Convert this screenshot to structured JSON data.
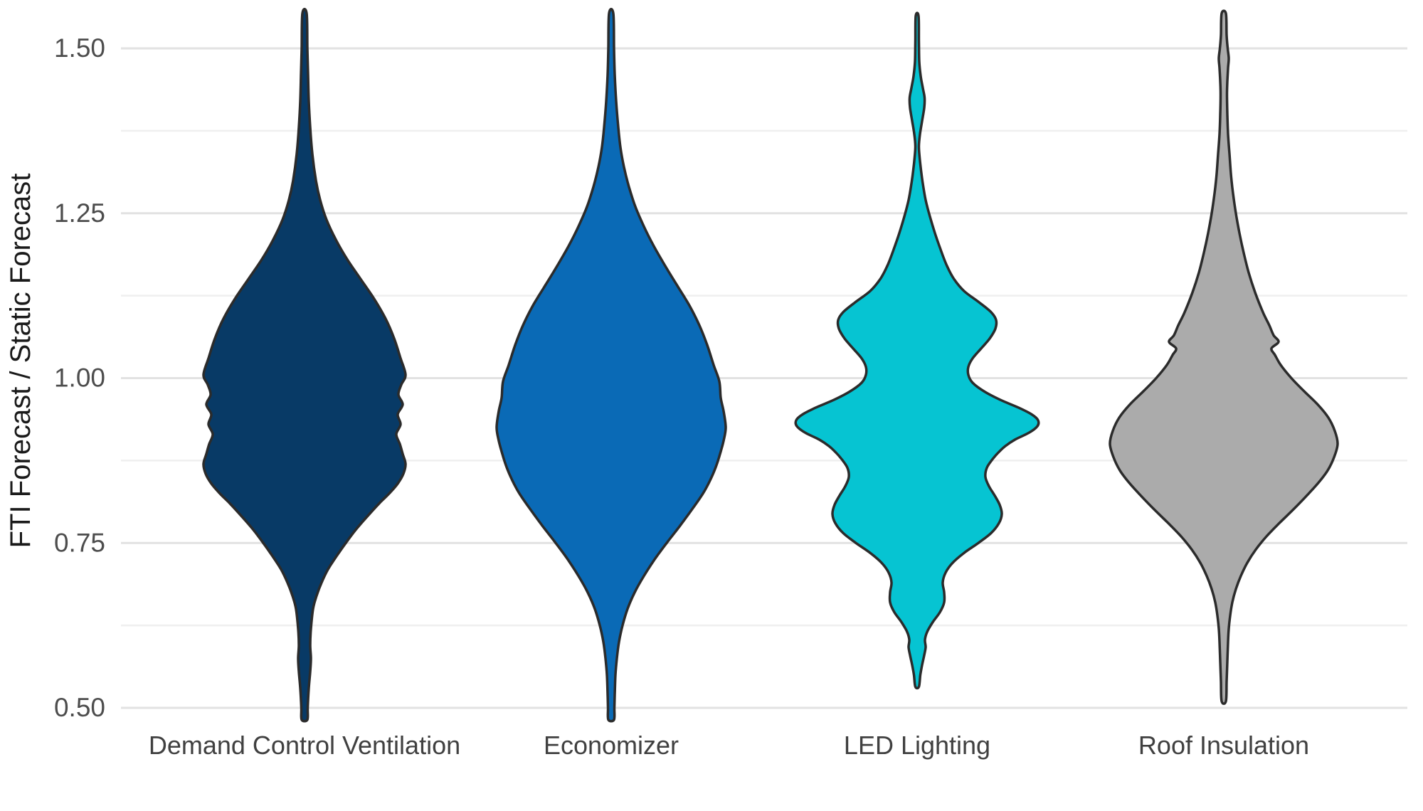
{
  "chart_data": {
    "type": "violin",
    "title": "",
    "xlabel": "",
    "ylabel": "FTI Forecast / Static Forecast",
    "categories": [
      "Demand Control Ventilation",
      "Economizer",
      "LED Lighting",
      "Roof Insulation"
    ],
    "y_ticks": [
      1.5,
      1.25,
      1.0,
      0.75,
      0.5
    ],
    "y_tick_labels": [
      "1.50",
      "1.25",
      "1.00",
      "0.75",
      "0.50"
    ],
    "y_minor_ticks": [
      1.375,
      1.125,
      0.875,
      0.625
    ],
    "ylim": [
      0.482,
      1.573
    ],
    "grid": "horizontal major+minor",
    "legend": "none",
    "colors": {
      "background": "#FFFFFF",
      "outline": "#2B2B2B",
      "grid_major": "#E2E2E2",
      "grid_minor": "#EFEFEF",
      "tick_text": "#4D4D4D",
      "category_text": "#404040",
      "axis_title_text": "#1A1A1A"
    },
    "series": [
      {
        "name": "Demand Control Ventilation",
        "fill": "#083A66",
        "profile_note": "pairs of [y_value, half_width_px at 2000px image scale]",
        "profile": [
          [
            1.553,
            3
          ],
          [
            1.5,
            4
          ],
          [
            1.46,
            5
          ],
          [
            1.42,
            6
          ],
          [
            1.38,
            8
          ],
          [
            1.34,
            11
          ],
          [
            1.3,
            16
          ],
          [
            1.27,
            22
          ],
          [
            1.24,
            31
          ],
          [
            1.21,
            44
          ],
          [
            1.18,
            60
          ],
          [
            1.15,
            79
          ],
          [
            1.12,
            98
          ],
          [
            1.09,
            114
          ],
          [
            1.06,
            126
          ],
          [
            1.03,
            135
          ],
          [
            1.005,
            142
          ],
          [
            0.99,
            136
          ],
          [
            0.975,
            132
          ],
          [
            0.96,
            138
          ],
          [
            0.945,
            131
          ],
          [
            0.93,
            135
          ],
          [
            0.915,
            129
          ],
          [
            0.9,
            134
          ],
          [
            0.885,
            138
          ],
          [
            0.87,
            142
          ],
          [
            0.855,
            139
          ],
          [
            0.84,
            131
          ],
          [
            0.825,
            119
          ],
          [
            0.81,
            105
          ],
          [
            0.79,
            88
          ],
          [
            0.77,
            72
          ],
          [
            0.75,
            58
          ],
          [
            0.73,
            45
          ],
          [
            0.71,
            33
          ],
          [
            0.69,
            24
          ],
          [
            0.67,
            17
          ],
          [
            0.65,
            12
          ],
          [
            0.62,
            9
          ],
          [
            0.595,
            8
          ],
          [
            0.575,
            9
          ],
          [
            0.555,
            8
          ],
          [
            0.53,
            6
          ],
          [
            0.5,
            4.5
          ],
          [
            0.482,
            4
          ]
        ]
      },
      {
        "name": "Economizer",
        "fill": "#0A6AB6",
        "profile": [
          [
            1.553,
            3
          ],
          [
            1.5,
            4
          ],
          [
            1.46,
            5
          ],
          [
            1.42,
            7
          ],
          [
            1.38,
            10
          ],
          [
            1.35,
            13
          ],
          [
            1.32,
            18
          ],
          [
            1.29,
            25
          ],
          [
            1.26,
            34
          ],
          [
            1.23,
            46
          ],
          [
            1.2,
            60
          ],
          [
            1.17,
            76
          ],
          [
            1.14,
            93
          ],
          [
            1.11,
            110
          ],
          [
            1.08,
            124
          ],
          [
            1.05,
            135
          ],
          [
            1.02,
            144
          ],
          [
            0.995,
            152
          ],
          [
            0.97,
            154
          ],
          [
            0.95,
            158
          ],
          [
            0.925,
            161
          ],
          [
            0.905,
            158
          ],
          [
            0.885,
            153
          ],
          [
            0.865,
            147
          ],
          [
            0.845,
            139
          ],
          [
            0.825,
            129
          ],
          [
            0.8,
            113
          ],
          [
            0.775,
            96
          ],
          [
            0.75,
            78
          ],
          [
            0.725,
            61
          ],
          [
            0.7,
            46
          ],
          [
            0.675,
            33
          ],
          [
            0.65,
            23
          ],
          [
            0.625,
            16
          ],
          [
            0.6,
            11
          ],
          [
            0.575,
            8
          ],
          [
            0.55,
            6
          ],
          [
            0.52,
            5
          ],
          [
            0.5,
            4.5
          ],
          [
            0.482,
            4
          ]
        ]
      },
      {
        "name": "LED Lighting",
        "fill": "#06C4D2",
        "profile": [
          [
            1.549,
            2
          ],
          [
            1.51,
            2.5
          ],
          [
            1.48,
            3
          ],
          [
            1.458,
            5
          ],
          [
            1.44,
            8
          ],
          [
            1.425,
            10.5
          ],
          [
            1.41,
            10
          ],
          [
            1.39,
            7
          ],
          [
            1.37,
            4
          ],
          [
            1.352,
            2.5
          ],
          [
            1.335,
            3.5
          ],
          [
            1.315,
            5.5
          ],
          [
            1.295,
            8
          ],
          [
            1.27,
            12
          ],
          [
            1.245,
            18
          ],
          [
            1.22,
            25
          ],
          [
            1.195,
            33
          ],
          [
            1.17,
            42
          ],
          [
            1.15,
            52
          ],
          [
            1.132,
            66
          ],
          [
            1.115,
            87
          ],
          [
            1.1,
            104
          ],
          [
            1.088,
            111
          ],
          [
            1.075,
            110
          ],
          [
            1.06,
            102
          ],
          [
            1.045,
            90
          ],
          [
            1.03,
            78
          ],
          [
            1.017,
            72
          ],
          [
            1.005,
            72
          ],
          [
            0.993,
            78
          ],
          [
            0.98,
            94
          ],
          [
            0.967,
            117
          ],
          [
            0.955,
            143
          ],
          [
            0.945,
            161
          ],
          [
            0.936,
            170
          ],
          [
            0.927,
            169
          ],
          [
            0.917,
            157
          ],
          [
            0.907,
            138
          ],
          [
            0.897,
            124
          ],
          [
            0.887,
            114
          ],
          [
            0.877,
            106
          ],
          [
            0.864,
            98
          ],
          [
            0.85,
            96
          ],
          [
            0.836,
            101
          ],
          [
            0.822,
            109
          ],
          [
            0.808,
            116
          ],
          [
            0.794,
            119
          ],
          [
            0.78,
            115
          ],
          [
            0.765,
            104
          ],
          [
            0.75,
            86
          ],
          [
            0.735,
            66
          ],
          [
            0.72,
            50
          ],
          [
            0.705,
            40
          ],
          [
            0.69,
            36
          ],
          [
            0.675,
            38
          ],
          [
            0.66,
            38
          ],
          [
            0.645,
            32
          ],
          [
            0.63,
            22
          ],
          [
            0.615,
            14
          ],
          [
            0.603,
            11
          ],
          [
            0.592,
            12
          ],
          [
            0.58,
            10
          ],
          [
            0.565,
            7
          ],
          [
            0.55,
            4.5
          ],
          [
            0.532,
            2.5
          ]
        ]
      },
      {
        "name": "Roof Insulation",
        "fill": "#ABABAB",
        "profile": [
          [
            1.553,
            3
          ],
          [
            1.52,
            4
          ],
          [
            1.5,
            5.5
          ],
          [
            1.485,
            7
          ],
          [
            1.47,
            6
          ],
          [
            1.45,
            5
          ],
          [
            1.43,
            4.5
          ],
          [
            1.4,
            5
          ],
          [
            1.37,
            6
          ],
          [
            1.34,
            8
          ],
          [
            1.31,
            10
          ],
          [
            1.28,
            13
          ],
          [
            1.25,
            17
          ],
          [
            1.22,
            22
          ],
          [
            1.19,
            28
          ],
          [
            1.16,
            35
          ],
          [
            1.13,
            44
          ],
          [
            1.1,
            55
          ],
          [
            1.08,
            64
          ],
          [
            1.065,
            70
          ],
          [
            1.055,
            77
          ],
          [
            1.045,
            67
          ],
          [
            1.035,
            72
          ],
          [
            1.02,
            80
          ],
          [
            1.0,
            95
          ],
          [
            0.98,
            113
          ],
          [
            0.96,
            132
          ],
          [
            0.94,
            147
          ],
          [
            0.92,
            156
          ],
          [
            0.9,
            160
          ],
          [
            0.88,
            155
          ],
          [
            0.86,
            146
          ],
          [
            0.84,
            132
          ],
          [
            0.82,
            115
          ],
          [
            0.8,
            97
          ],
          [
            0.78,
            78
          ],
          [
            0.76,
            60
          ],
          [
            0.74,
            45
          ],
          [
            0.72,
            33
          ],
          [
            0.7,
            24
          ],
          [
            0.68,
            17
          ],
          [
            0.66,
            12
          ],
          [
            0.64,
            9
          ],
          [
            0.62,
            7
          ],
          [
            0.6,
            6
          ],
          [
            0.57,
            5
          ],
          [
            0.54,
            4
          ],
          [
            0.51,
            3
          ]
        ]
      }
    ]
  }
}
